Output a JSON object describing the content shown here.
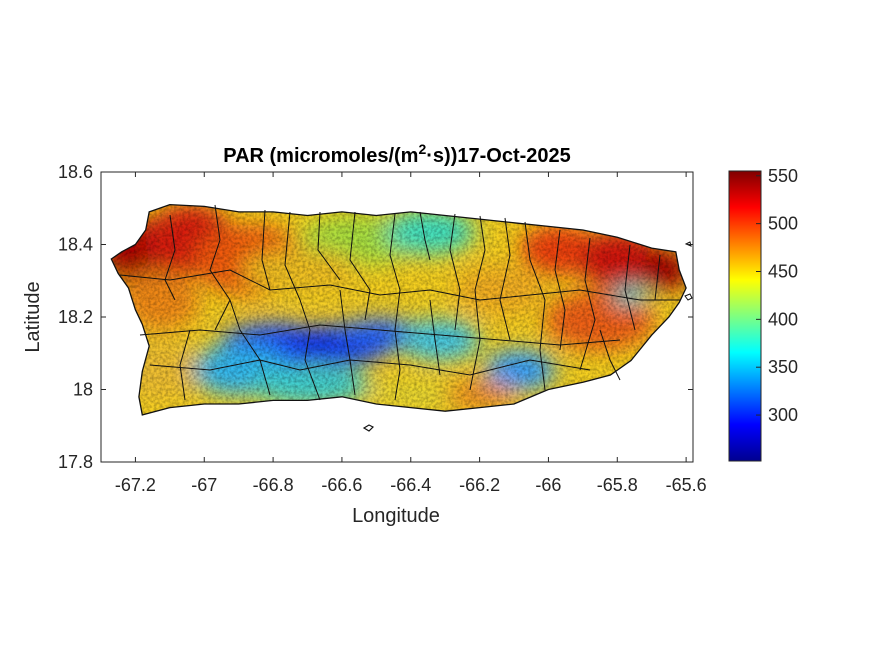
{
  "chart_data": {
    "type": "heatmap",
    "title": {
      "prefix": "PAR (micromoles/(m",
      "superscript": "2",
      "suffix": "·s))17-Oct-2025"
    },
    "xlabel": "Longitude",
    "ylabel": "Latitude",
    "xlim": [
      -67.3,
      -65.58
    ],
    "ylim": [
      17.8,
      18.6
    ],
    "xticks": [
      -67.2,
      -67,
      -66.8,
      -66.6,
      -66.4,
      -66.2,
      -66,
      -65.8,
      -65.6
    ],
    "xtick_labels": [
      "-67.2",
      "-67",
      "-66.8",
      "-66.6",
      "-66.4",
      "-66.2",
      "-66",
      "-65.8",
      "-65.6"
    ],
    "yticks": [
      17.8,
      18,
      18.2,
      18.4,
      18.6
    ],
    "ytick_labels": [
      "17.8",
      "18",
      "18.2",
      "18.4",
      "18.6"
    ],
    "colorbar": {
      "colormap": "jet",
      "limits": [
        252,
        555
      ],
      "ticks": [
        300,
        350,
        400,
        450,
        500,
        550
      ],
      "tick_labels": [
        "300",
        "350",
        "400",
        "450",
        "500",
        "550"
      ]
    },
    "region": "Puerto Rico with municipality boundaries",
    "value_pattern": [
      {
        "area": "far west coast",
        "approx_value": 535
      },
      {
        "area": "northwest",
        "approx_value": 505
      },
      {
        "area": "north-central coast",
        "approx_value": 420
      },
      {
        "area": "central mountain range",
        "approx_value": 320
      },
      {
        "area": "south-central coast",
        "approx_value": 400
      },
      {
        "area": "southwest",
        "approx_value": 445
      },
      {
        "area": "east-central",
        "approx_value": 470
      },
      {
        "area": "northeast corner",
        "approx_value": 530
      }
    ]
  }
}
